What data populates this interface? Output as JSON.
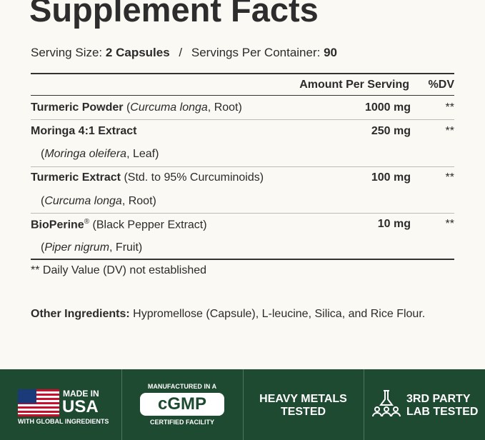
{
  "title": "Supplement Facts",
  "serving": {
    "size_label": "Serving Size:",
    "size": "2 Capsules",
    "separator": "/",
    "per_container_label": "Servings Per Container:",
    "per_container": "90"
  },
  "table": {
    "header": {
      "amount": "Amount Per Serving",
      "dv": "%DV"
    },
    "rows": [
      {
        "name": "Turmeric Powder",
        "note": [
          "(",
          "Curcuma longa",
          ", Root)"
        ],
        "amount": "1000 mg",
        "dv": "**"
      },
      {
        "name": "Moringa 4:1 Extract",
        "amount": "250 mg",
        "dv": "**",
        "sub": [
          "(",
          "Moringa oleifera",
          ", Leaf)"
        ]
      },
      {
        "name": "Turmeric Extract",
        "note": [
          "(Std. to 95% Curcuminoids)"
        ],
        "amount": "100 mg",
        "dv": "**",
        "sub": [
          "(",
          "Curcuma longa",
          ", Root)"
        ]
      },
      {
        "name": "BioPerine",
        "mark": "®",
        "note": [
          "(Black Pepper Extract)"
        ],
        "amount": "10 mg",
        "dv": "**",
        "sub": [
          "(",
          "Piper nigrum",
          ", Fruit)"
        ]
      }
    ],
    "footnote": "** Daily Value (DV) not established"
  },
  "other_ingredients": {
    "label": "Other Ingredients:",
    "text": "Hypromellose (Capsule), L-leucine, Silica, and Rice Flour."
  },
  "badges": [
    {
      "top": "MADE IN",
      "main": "USA",
      "bottom": "WITH GLOBAL INGREDIENTS"
    },
    {
      "top": "MANUFACTURED IN A",
      "main": "cGMP",
      "bottom": "CERTIFIED FACILITY"
    },
    {
      "top": "HEAVY METALS",
      "main": "TESTED"
    },
    {
      "top": "3RD PARTY",
      "main": "LAB TESTED"
    }
  ]
}
